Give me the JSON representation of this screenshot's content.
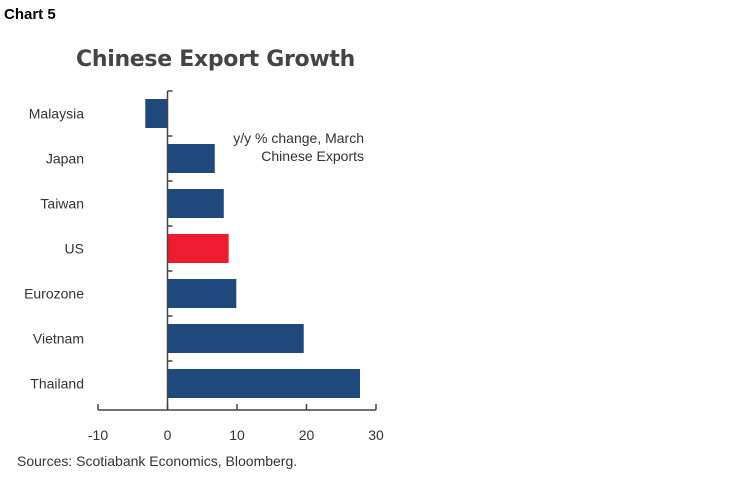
{
  "header": {
    "chart_label": "Chart 5"
  },
  "footer": {
    "source": "Sources: Scotiabank Economics, Bloomberg."
  },
  "chart_data": {
    "type": "bar",
    "orientation": "horizontal",
    "title": "Chinese Export Growth",
    "annotation": [
      "y/y % change, March",
      "Chinese Exports"
    ],
    "categories": [
      "Malaysia",
      "Japan",
      "Taiwan",
      "US",
      "Eurozone",
      "Vietnam",
      "Thailand"
    ],
    "values": [
      -3.2,
      6.8,
      8.1,
      8.8,
      9.9,
      19.6,
      27.7
    ],
    "highlight": "US",
    "colors": {
      "default": "#1f497d",
      "highlight": "#ee1c2e"
    },
    "xlim": [
      -10,
      30
    ],
    "xticks": [
      -10,
      0,
      10,
      20,
      30
    ],
    "grid": false,
    "xlabel": "",
    "ylabel": ""
  }
}
